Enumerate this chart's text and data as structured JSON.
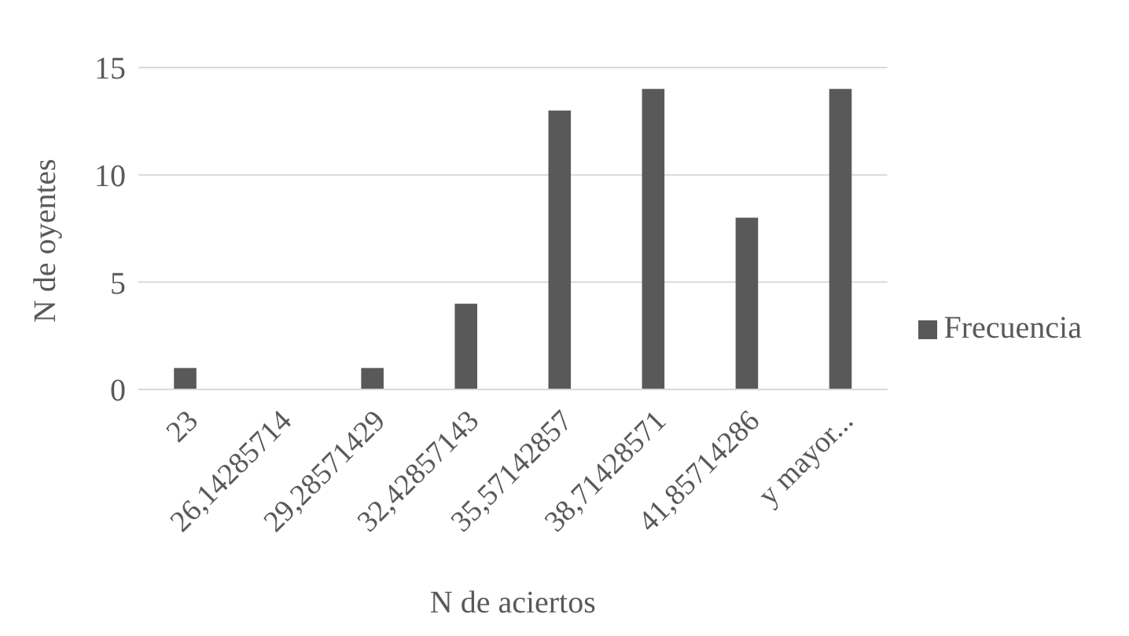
{
  "chart_data": {
    "type": "bar",
    "xlabel": "N de aciertos",
    "ylabel": "N de oyentes",
    "categories": [
      "23",
      "26,14285714",
      "29,28571429",
      "32,42857143",
      "35,57142857",
      "38,71428571",
      "41,85714286",
      "y mayor..."
    ],
    "series": [
      {
        "name": "Frecuencia",
        "color": "#595959",
        "values": [
          1,
          0,
          1,
          4,
          13,
          14,
          8,
          14
        ]
      }
    ],
    "ylim": [
      0,
      15
    ],
    "yticks": [
      0,
      5,
      10,
      15
    ],
    "grid": "y",
    "legend": "right"
  }
}
